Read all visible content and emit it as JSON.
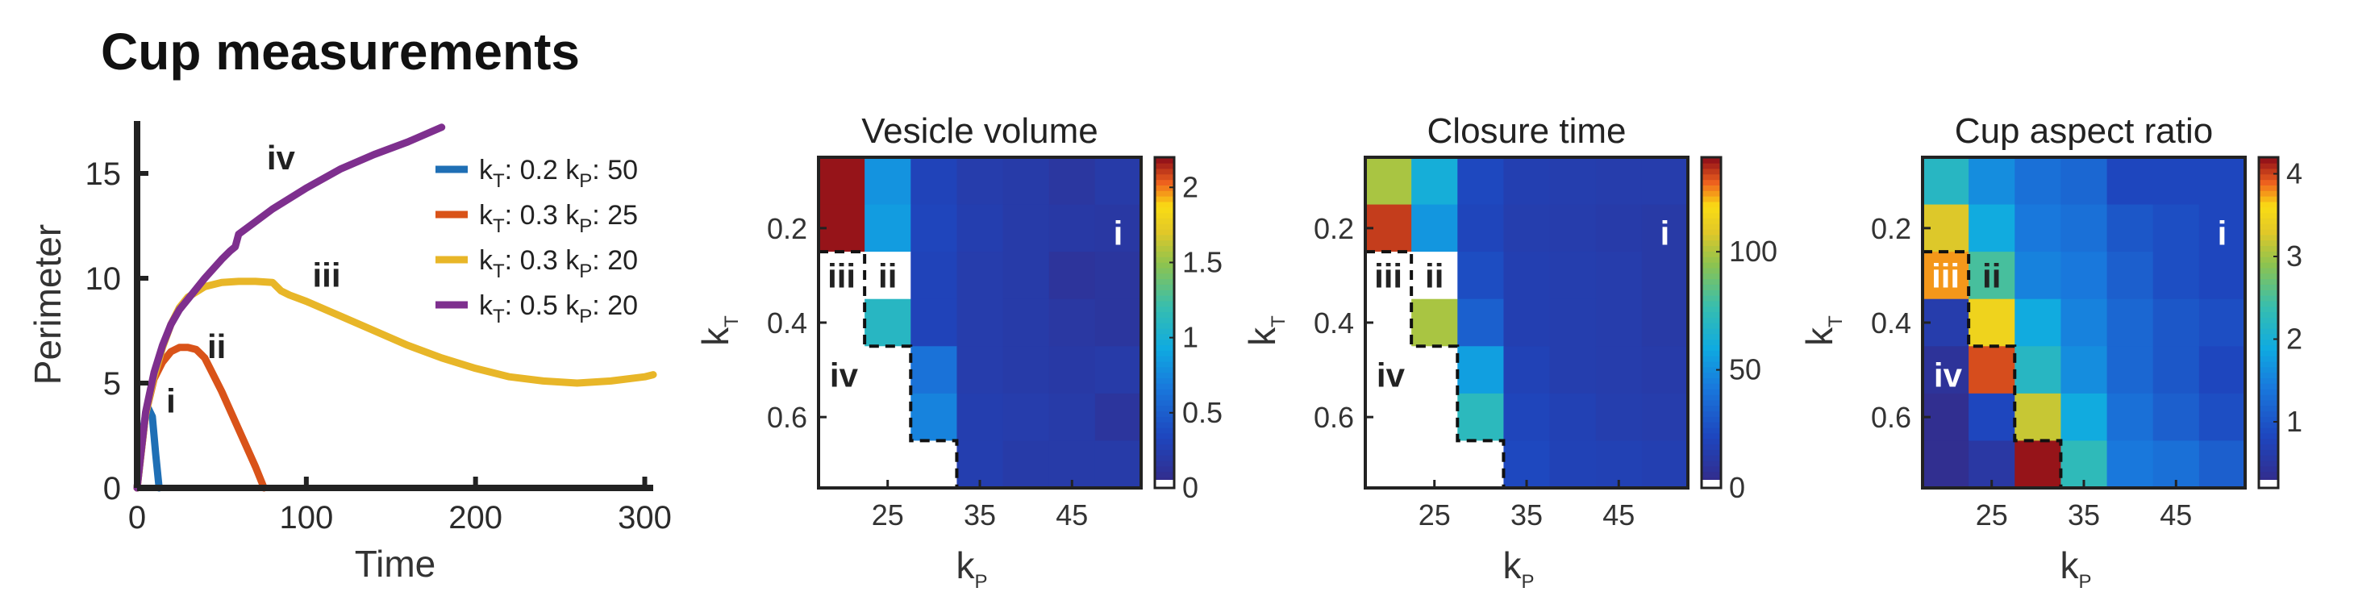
{
  "figure_title": "Cup measurements",
  "colors": {
    "blue": "#1f6fb5",
    "orange": "#d95319",
    "yellow": "#e8b628",
    "purple": "#7e2f8e"
  },
  "chart_data": [
    {
      "type": "line",
      "title": "",
      "xlabel": "Time",
      "ylabel": "Perimeter",
      "xlim": [
        0,
        305
      ],
      "ylim": [
        0,
        17.5
      ],
      "xticks": [
        "0",
        "100",
        "200",
        "300"
      ],
      "yticks": [
        "0",
        "5",
        "10",
        "15"
      ],
      "legend_position": "top-right",
      "series": [
        {
          "name": "kT: 0.2 kP: 50",
          "legend": {
            "a": "k",
            "a_sub": "T",
            "b": ": 0.2 k",
            "b_sub": "P",
            "c": ": 50"
          },
          "color": "#1f6fb5",
          "x": [
            0,
            3,
            6,
            9,
            11,
            13
          ],
          "y": [
            0,
            2.6,
            3.9,
            3.4,
            1.6,
            0
          ]
        },
        {
          "name": "kT: 0.3 kP: 25",
          "legend": {
            "a": "k",
            "a_sub": "T",
            "b": ": 0.3 k",
            "b_sub": "P",
            "c": ": 25"
          },
          "color": "#d95319",
          "x": [
            0,
            5,
            10,
            15,
            20,
            25,
            30,
            35,
            40,
            50,
            60,
            70,
            75
          ],
          "y": [
            0,
            3.5,
            5.2,
            6.0,
            6.5,
            6.7,
            6.7,
            6.6,
            6.2,
            4.6,
            2.8,
            1.0,
            0
          ]
        },
        {
          "name": "kT: 0.3 kP: 20",
          "legend": {
            "a": "k",
            "a_sub": "T",
            "b": ": 0.3 k",
            "b_sub": "P",
            "c": ": 20"
          },
          "color": "#e8b628",
          "x": [
            0,
            5,
            10,
            15,
            20,
            25,
            30,
            40,
            50,
            60,
            70,
            80,
            85,
            90,
            100,
            120,
            140,
            160,
            180,
            200,
            220,
            240,
            260,
            280,
            300,
            305
          ],
          "y": [
            0,
            3.5,
            5.3,
            6.7,
            7.8,
            8.6,
            9.1,
            9.6,
            9.8,
            9.85,
            9.85,
            9.8,
            9.4,
            9.2,
            8.9,
            8.2,
            7.5,
            6.8,
            6.2,
            5.7,
            5.3,
            5.1,
            5.0,
            5.1,
            5.3,
            5.4
          ]
        },
        {
          "name": "kT: 0.5 kP: 20",
          "legend": {
            "a": "k",
            "a_sub": "T",
            "b": ": 0.5 k",
            "b_sub": "P",
            "c": ": 20"
          },
          "color": "#7e2f8e",
          "x": [
            0,
            5,
            10,
            15,
            20,
            25,
            30,
            40,
            50,
            55,
            58,
            60,
            70,
            80,
            100,
            120,
            140,
            160,
            180
          ],
          "y": [
            0,
            3.6,
            5.5,
            6.8,
            7.8,
            8.5,
            9.0,
            10.0,
            10.9,
            11.3,
            11.5,
            12.1,
            12.7,
            13.3,
            14.3,
            15.2,
            15.9,
            16.5,
            17.2
          ]
        }
      ],
      "annotations": [
        {
          "text": "i",
          "x": 20,
          "y": 3.6
        },
        {
          "text": "ii",
          "x": 47,
          "y": 6.2
        },
        {
          "text": "iii",
          "x": 112,
          "y": 9.6
        },
        {
          "text": "iv",
          "x": 85,
          "y": 15.2
        }
      ]
    },
    {
      "type": "heatmap",
      "title": "Vesicle volume",
      "xlabel": "kP",
      "ylabel": "kT",
      "xticks": [
        "25",
        "35",
        "45"
      ],
      "yticks": [
        "0.2",
        "0.4",
        "0.6"
      ],
      "clim": [
        0,
        2.2
      ],
      "cbar_ticks": [
        "0",
        "0.5",
        "1",
        "1.5",
        "2"
      ],
      "cbar_values": [
        0,
        0.5,
        1,
        1.5,
        2
      ],
      "values": [
        [
          2.2,
          0.8,
          0.3,
          0.22,
          0.2,
          0.15,
          0.2
        ],
        [
          2.6,
          0.85,
          0.32,
          0.24,
          0.2,
          0.18,
          0.17
        ],
        [
          null,
          null,
          0.3,
          0.22,
          0.2,
          0.12,
          0.14
        ],
        [
          null,
          1.1,
          0.3,
          0.22,
          0.2,
          0.16,
          0.14
        ],
        [
          null,
          null,
          0.62,
          0.22,
          0.2,
          0.18,
          0.2
        ],
        [
          null,
          null,
          0.72,
          0.24,
          0.22,
          0.2,
          0.13
        ],
        [
          null,
          null,
          null,
          0.24,
          0.2,
          0.2,
          0.2
        ]
      ],
      "regions": [
        {
          "text": "i",
          "row": 1.6,
          "col": 6.5,
          "color": "#ffffff"
        },
        {
          "text": "ii",
          "row": 2.5,
          "col": 1.5,
          "color": "#222222"
        },
        {
          "text": "iii",
          "row": 2.5,
          "col": 0.5,
          "color": "#222222"
        },
        {
          "text": "iv",
          "row": 4.6,
          "col": 0.55,
          "color": "#222222"
        }
      ]
    },
    {
      "type": "heatmap",
      "title": "Closure time",
      "xlabel": "kP",
      "ylabel": "kT",
      "xticks": [
        "25",
        "35",
        "45"
      ],
      "yticks": [
        "0.2",
        "0.4",
        "0.6"
      ],
      "clim": [
        0,
        140
      ],
      "cbar_ticks": [
        "0",
        "50",
        "100"
      ],
      "cbar_values": [
        0,
        50,
        100
      ],
      "values": [
        [
          100,
          62,
          22,
          16,
          15,
          14,
          14
        ],
        [
          135,
          52,
          20,
          15,
          14,
          13,
          12
        ],
        [
          null,
          null,
          24,
          16,
          15,
          14,
          12
        ],
        [
          null,
          100,
          32,
          16,
          15,
          14,
          12
        ],
        [
          null,
          null,
          55,
          18,
          15,
          14,
          13
        ],
        [
          null,
          null,
          72,
          20,
          17,
          15,
          14
        ],
        [
          null,
          null,
          null,
          22,
          18,
          17,
          16
        ]
      ],
      "regions": [
        {
          "text": "i",
          "row": 1.6,
          "col": 6.5,
          "color": "#ffffff"
        },
        {
          "text": "ii",
          "row": 2.5,
          "col": 1.5,
          "color": "#222222"
        },
        {
          "text": "iii",
          "row": 2.5,
          "col": 0.5,
          "color": "#222222"
        },
        {
          "text": "iv",
          "row": 4.6,
          "col": 0.55,
          "color": "#222222"
        }
      ]
    },
    {
      "type": "heatmap",
      "title": "Cup aspect ratio",
      "xlabel": "kP",
      "ylabel": "kT",
      "xticks": [
        "25",
        "35",
        "45"
      ],
      "yticks": [
        "0.2",
        "0.4",
        "0.6"
      ],
      "clim": [
        0.2,
        4.2
      ],
      "cbar_ticks": [
        "1",
        "2",
        "3",
        "4"
      ],
      "cbar_values": [
        1,
        2,
        3,
        4
      ],
      "values": [
        [
          2.2,
          1.6,
          1.3,
          1.2,
          0.8,
          0.8,
          0.8
        ],
        [
          3.3,
          1.9,
          1.4,
          1.3,
          1.0,
          0.9,
          0.8
        ],
        [
          3.8,
          2.5,
          1.5,
          1.4,
          1.1,
          0.9,
          0.8
        ],
        [
          0.6,
          3.5,
          1.9,
          1.5,
          1.2,
          1.0,
          0.9
        ],
        [
          0.4,
          4.0,
          2.2,
          1.6,
          1.2,
          1.0,
          0.8
        ],
        [
          0.3,
          0.8,
          3.2,
          1.9,
          1.3,
          1.1,
          0.9
        ],
        [
          0.3,
          0.5,
          4.2,
          2.3,
          1.4,
          1.3,
          1.1
        ]
      ],
      "regions": [
        {
          "text": "i",
          "row": 1.6,
          "col": 6.5,
          "color": "#ffffff"
        },
        {
          "text": "ii",
          "row": 2.5,
          "col": 1.5,
          "color": "#222222"
        },
        {
          "text": "iii",
          "row": 2.5,
          "col": 0.5,
          "color": "#ffffff"
        },
        {
          "text": "iv",
          "row": 4.6,
          "col": 0.55,
          "color": "#ffffff"
        }
      ]
    }
  ]
}
